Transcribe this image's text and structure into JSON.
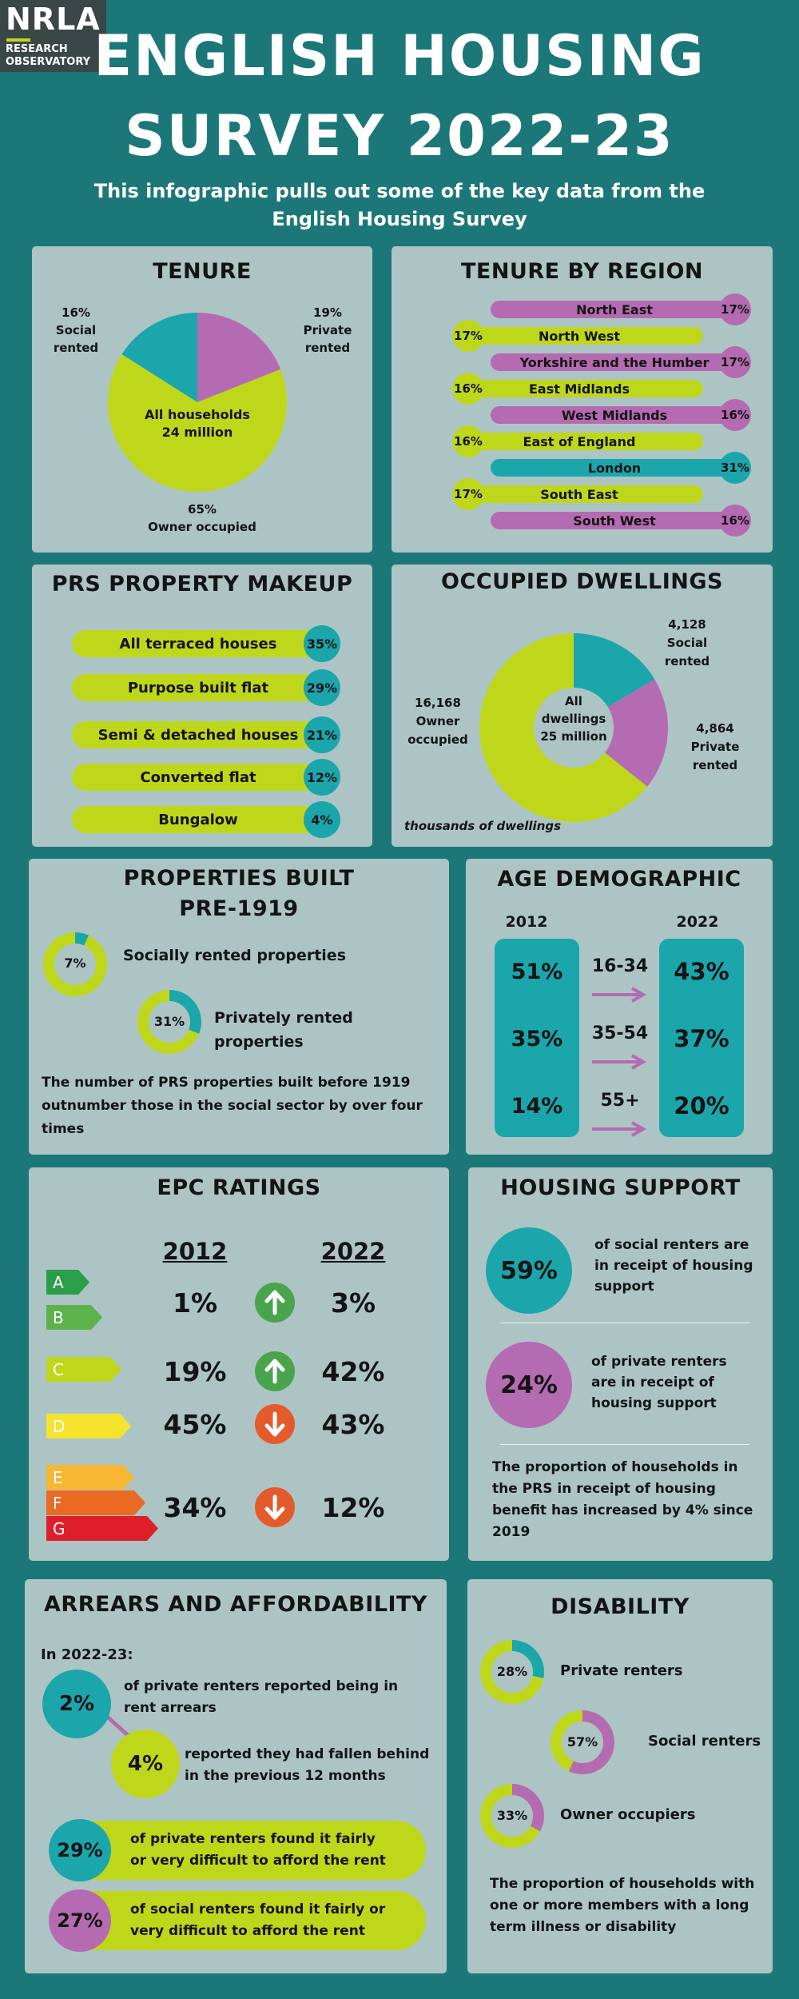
{
  "logo": {
    "text": "NRLA",
    "line1": "RESEARCH",
    "line2": "OBSERVATORY"
  },
  "title": {
    "line1": "ENGLISH HOUSING",
    "line2": "SURVEY 2022-23"
  },
  "subtitle": {
    "line1": "This infographic pulls out some of the key data from the",
    "line2": "English Housing Survey"
  },
  "colors": {
    "lime": "#bfd71b",
    "teal": "#1aa6ab",
    "purple": "#b56bb1",
    "panel": "#adc4c5",
    "background": "#1c7878"
  },
  "tenure": {
    "title": "TENURE",
    "center_line1": "All households",
    "center_line2": "24 million",
    "social_pct": "16%",
    "social_l1": "Social",
    "social_l2": "rented",
    "private_pct": "19%",
    "private_l1": "Private",
    "private_l2": "rented",
    "owner_pct": "65%",
    "owner_label": "Owner occupied"
  },
  "tenure_by_region": {
    "title": "TENURE BY REGION",
    "regions": [
      {
        "name": "North East",
        "value": "17%",
        "side": "right",
        "color": "purple"
      },
      {
        "name": "North West",
        "value": "17%",
        "side": "left",
        "color": "lime"
      },
      {
        "name": "Yorkshire and the Humber",
        "value": "17%",
        "side": "right",
        "color": "purple"
      },
      {
        "name": "East Midlands",
        "value": "16%",
        "side": "left",
        "color": "lime"
      },
      {
        "name": "West Midlands",
        "value": "16%",
        "side": "right",
        "color": "purple"
      },
      {
        "name": "East of England",
        "value": "16%",
        "side": "left",
        "color": "lime"
      },
      {
        "name": "London",
        "value": "31%",
        "side": "right",
        "color": "teal"
      },
      {
        "name": "South East",
        "value": "17%",
        "side": "left",
        "color": "lime"
      },
      {
        "name": "South West",
        "value": "16%",
        "side": "right",
        "color": "purple"
      }
    ]
  },
  "prs_makeup": {
    "title": "PRS PROPERTY MAKEUP",
    "items": [
      {
        "name": "All terraced houses",
        "value": "35%"
      },
      {
        "name": "Purpose built flat",
        "value": "29%"
      },
      {
        "name": "Semi & detached houses",
        "value": "21%"
      },
      {
        "name": "Converted flat",
        "value": "12%"
      },
      {
        "name": "Bungalow",
        "value": "4%"
      }
    ]
  },
  "occupied_dwellings": {
    "title": "OCCUPIED DWELLINGS",
    "center_line1": "All",
    "center_line2": "dwellings",
    "center_line3": "25 million",
    "social_value": "4,128",
    "social_l1": "Social",
    "social_l2": "rented",
    "private_value": "4,864",
    "private_l1": "Private",
    "private_l2": "rented",
    "owner_value": "16,168",
    "owner_l1": "Owner",
    "owner_l2": "occupied",
    "note": "thousands of dwellings"
  },
  "pre1919": {
    "title_line1": "PROPERTIES BUILT",
    "title_line2": "PRE-1919",
    "social_pct": "7%",
    "social_label": "Socially rented properties",
    "private_pct": "31%",
    "private_label_l1": "Privately rented",
    "private_label_l2": "properties",
    "note_l1": "The number of PRS properties built before 1919",
    "note_l2": "outnumber those in the social  sector by over four",
    "note_l3": "times"
  },
  "age_demographic": {
    "title": "AGE DEMOGRAPHIC",
    "year_a": "2012",
    "year_b": "2022",
    "rows": [
      {
        "band": "16-34",
        "a": "51%",
        "b": "43%"
      },
      {
        "band": "35-54",
        "a": "35%",
        "b": "37%"
      },
      {
        "band": "55+",
        "a": "14%",
        "b": "20%"
      }
    ]
  },
  "epc": {
    "title": "EPC RATINGS",
    "year_a": "2012",
    "year_b": "2022",
    "bands": [
      "A",
      "B",
      "C",
      "D",
      "E",
      "F",
      "G"
    ],
    "band_colors": [
      "#2a9e48",
      "#5db24b",
      "#bfd71b",
      "#f6e32d",
      "#f7b732",
      "#ea6a24",
      "#df1e2c"
    ],
    "rows": [
      {
        "a": "1%",
        "b": "3%",
        "dir": "up"
      },
      {
        "a": "19%",
        "b": "42%",
        "dir": "up"
      },
      {
        "a": "45%",
        "b": "43%",
        "dir": "down"
      },
      {
        "a": "34%",
        "b": "12%",
        "dir": "down"
      }
    ]
  },
  "housing_support": {
    "title": "HOUSING SUPPORT",
    "social_pct": "59%",
    "social_l1": "of social renters are",
    "social_l2": "in receipt of housing",
    "social_l3": "support",
    "private_pct": "24%",
    "private_l1": "of private renters",
    "private_l2": "are in receipt of",
    "private_l3": "housing support",
    "note_l1": "The proportion of households in",
    "note_l2": "the PRS in receipt of housing",
    "note_l3": "benefit has increased by 4% since",
    "note_l4": "2019"
  },
  "arrears": {
    "title": "ARREARS AND AFFORDABILITY",
    "intro": "In 2022-23:",
    "a_pct": "2%",
    "a_l1": "of private renters reported being in",
    "a_l2": "rent arrears",
    "b_pct": "4%",
    "b_l1": "reported they had fallen behind",
    "b_l2": "in the previous 12 months",
    "c_pct": "29%",
    "c_l1": "of private renters found it fairly",
    "c_l2": "or very difficult to afford the rent",
    "d_pct": "27%",
    "d_l1": "of social renters found it fairly or",
    "d_l2": "very difficult to afford the rent"
  },
  "disability": {
    "title": "DISABILITY",
    "items": [
      {
        "pct": "28%",
        "label": "Private renters",
        "value": 28,
        "color": "teal"
      },
      {
        "pct": "57%",
        "label": "Social renters",
        "value": 57,
        "color": "purple"
      },
      {
        "pct": "33%",
        "label": "Owner occupiers",
        "value": 33,
        "color": "purple"
      }
    ],
    "note_l1": "The proportion of households with",
    "note_l2": "one or more members with a long",
    "note_l3": "term illness or disability"
  },
  "chart_data": [
    {
      "type": "pie",
      "title": "TENURE",
      "categories": [
        "Private rented",
        "Owner occupied",
        "Social rented"
      ],
      "values": [
        19,
        65,
        16
      ]
    },
    {
      "type": "bar",
      "title": "TENURE BY REGION",
      "categories": [
        "North East",
        "North West",
        "Yorkshire and the Humber",
        "East Midlands",
        "West Midlands",
        "East of England",
        "London",
        "South East",
        "South West"
      ],
      "values": [
        17,
        17,
        17,
        16,
        16,
        16,
        31,
        17,
        16
      ]
    },
    {
      "type": "bar",
      "title": "PRS PROPERTY MAKEUP",
      "categories": [
        "All terraced houses",
        "Purpose built flat",
        "Semi & detached houses",
        "Converted flat",
        "Bungalow"
      ],
      "values": [
        35,
        29,
        21,
        12,
        4
      ]
    },
    {
      "type": "pie",
      "title": "OCCUPIED DWELLINGS",
      "categories": [
        "Social rented",
        "Private rented",
        "Owner occupied"
      ],
      "values": [
        4128,
        4864,
        16168
      ]
    },
    {
      "type": "pie",
      "title": "PROPERTIES BUILT PRE-1919",
      "categories": [
        "Socially rented properties",
        "Privately rented properties"
      ],
      "values": [
        7,
        31
      ]
    },
    {
      "type": "table",
      "title": "AGE DEMOGRAPHIC",
      "categories": [
        "16-34",
        "35-54",
        "55+"
      ],
      "series": [
        {
          "name": "2012",
          "values": [
            51,
            35,
            14
          ]
        },
        {
          "name": "2022",
          "values": [
            43,
            37,
            20
          ]
        }
      ]
    },
    {
      "type": "table",
      "title": "EPC RATINGS",
      "categories": [
        "A-B",
        "C",
        "D",
        "E-G"
      ],
      "series": [
        {
          "name": "2012",
          "values": [
            1,
            19,
            45,
            34
          ]
        },
        {
          "name": "2022",
          "values": [
            3,
            42,
            43,
            12
          ]
        }
      ]
    },
    {
      "type": "pie",
      "title": "DISABILITY",
      "categories": [
        "Private renters",
        "Social renters",
        "Owner occupiers"
      ],
      "values": [
        28,
        57,
        33
      ]
    }
  ]
}
